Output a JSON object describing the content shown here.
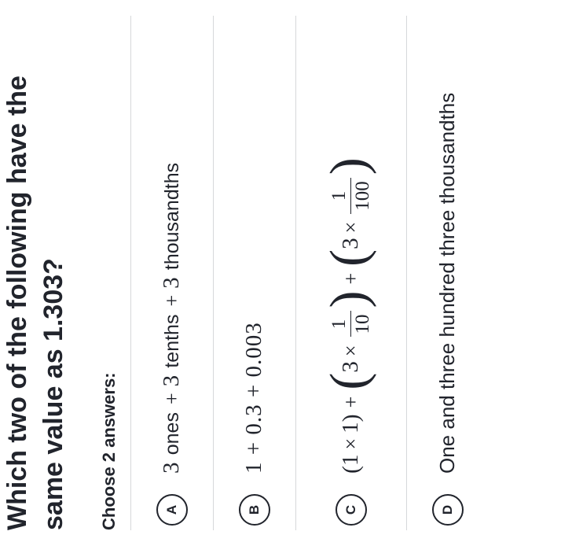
{
  "question": "Which two of the following have the same value as 1.303?",
  "prompt": "Choose 2 answers:",
  "choices": {
    "A": {
      "letter": "A",
      "parts": {
        "n1": "3",
        "u1": "ones",
        "p1": "+",
        "n2": "3",
        "u2": "tenths",
        "p2": "+",
        "n3": "3",
        "u3": "thousandths"
      }
    },
    "B": {
      "letter": "B",
      "expr": "1 + 0.3 + 0.003"
    },
    "C": {
      "letter": "C",
      "t1a": "1",
      "t1b": "1",
      "t2a": "3",
      "f2n": "1",
      "f2d": "10",
      "t3a": "3",
      "f3n": "1",
      "f3d": "100",
      "plus": "+",
      "times": "×",
      "lp": "(",
      "rp": ")"
    },
    "D": {
      "letter": "D",
      "text": "One and three hundred three thousandths"
    }
  }
}
